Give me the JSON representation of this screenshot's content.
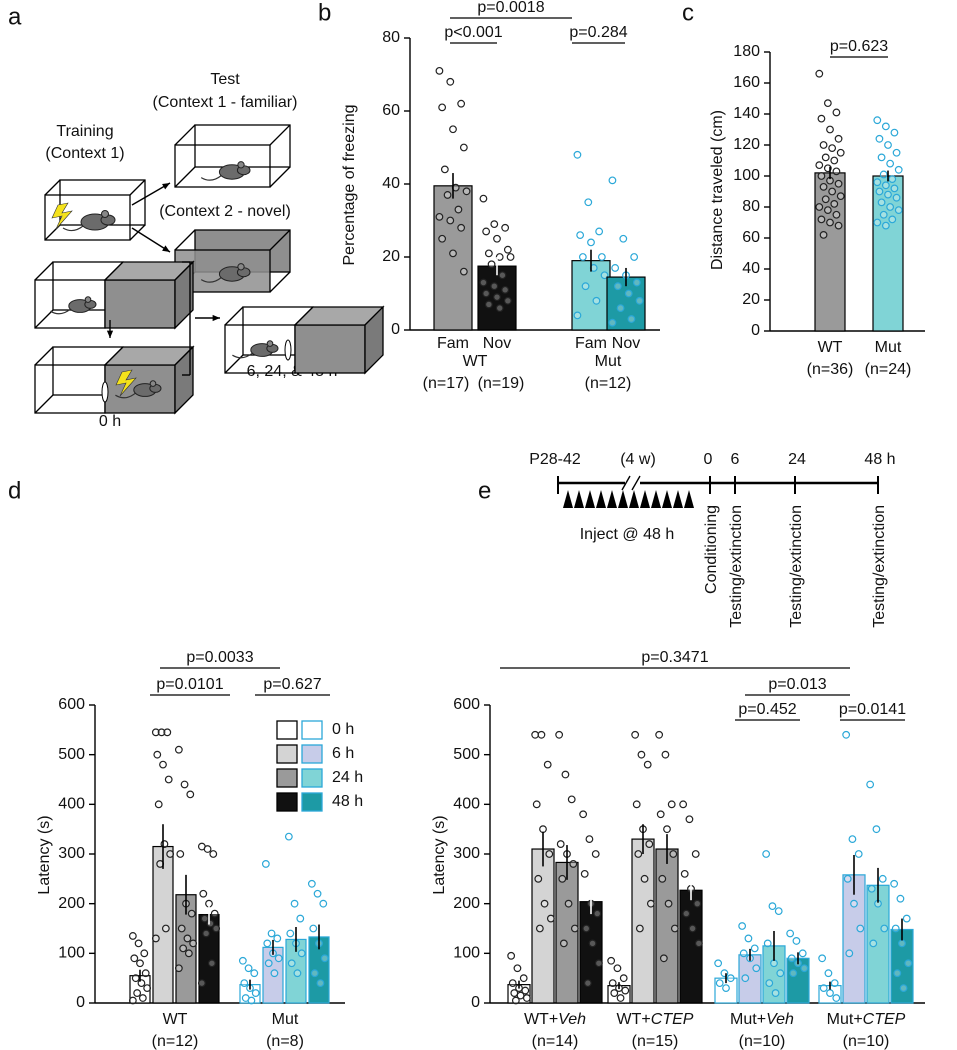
{
  "panel_labels": [
    "a",
    "b",
    "c",
    "d",
    "e"
  ],
  "diagram_a": {
    "training": [
      "Training",
      "(Context 1)"
    ],
    "test": [
      "Test",
      "(Context 1 - familiar)"
    ],
    "novel": "(Context 2 - novel)"
  },
  "diagram_d": {
    "times": [
      "0 h",
      "6, 24, & 48 h"
    ]
  },
  "timeline": {
    "labels": [
      "P28-42",
      "(4 w)",
      "0",
      "6",
      "24",
      "48 h"
    ],
    "inject": "Inject @ 48 h",
    "phases": [
      "Conditioning",
      "Testing/extinction",
      "Testing/extinction",
      "Testing/extinction"
    ]
  },
  "chart_data": [
    {
      "type": "bar",
      "ylabel": "Percentage of freezing",
      "categories": [
        "Fam",
        "Nov",
        "Fam",
        "Nov"
      ],
      "groups": [
        "WT",
        "Mut"
      ],
      "n_labels": [
        "(n=17)",
        "(n=19)",
        "(n=12)"
      ],
      "values": [
        39.5,
        17.5,
        19,
        14.5
      ],
      "errors": [
        3.5,
        2.5,
        3,
        2.5
      ],
      "colors": [
        "#9a9a9a",
        "#111111",
        "#80d4d6",
        "#1d9aa5"
      ],
      "edgecolors": [
        "#000000",
        "#000000",
        "#000000",
        "#000000"
      ],
      "point_colors": [
        "#222222",
        "#222222",
        "#2ba8d8",
        "#2ba8d8"
      ],
      "points": [
        [
          71,
          68,
          62,
          61,
          55,
          50,
          44,
          39,
          38,
          37,
          33,
          31,
          30,
          28,
          25,
          21,
          16
        ],
        [
          36,
          29,
          28,
          27,
          25,
          22,
          21,
          20,
          20,
          18,
          15,
          13,
          12,
          11,
          10,
          9,
          8,
          7,
          6
        ],
        [
          48,
          35,
          27,
          26,
          24,
          20,
          20,
          17,
          15,
          12,
          8,
          4
        ],
        [
          41,
          25,
          20,
          17,
          15,
          13,
          12,
          10,
          8,
          6,
          3,
          2
        ]
      ],
      "ylim": [
        0,
        80
      ],
      "yticks": [
        0,
        20,
        40,
        60,
        80
      ],
      "annotations": [
        "p=0.0018",
        "p<0.001",
        "p=0.284"
      ]
    },
    {
      "type": "bar",
      "ylabel": "Distance traveled (cm)",
      "categories": [
        "WT",
        "Mut"
      ],
      "n_labels": [
        "(n=36)",
        "(n=24)"
      ],
      "values": [
        102,
        100
      ],
      "errors": [
        4,
        3.5
      ],
      "colors": [
        "#9a9a9a",
        "#80d4d6"
      ],
      "edgecolors": [
        "#000000",
        "#000000"
      ],
      "point_colors": [
        "#222222",
        "#2ba8d8"
      ],
      "points": [
        [
          166,
          147,
          141,
          137,
          130,
          124,
          120,
          118,
          115,
          112,
          110,
          107,
          105,
          103,
          100,
          97,
          95,
          93,
          90,
          87,
          85,
          82,
          80,
          78,
          75,
          72,
          70,
          68,
          62
        ],
        [
          136,
          132,
          128,
          124,
          120,
          115,
          112,
          108,
          104,
          101,
          98,
          96,
          94,
          92,
          90,
          88,
          86,
          83,
          80,
          78,
          75,
          72,
          70,
          68
        ]
      ],
      "ylim": [
        0,
        180
      ],
      "yticks": [
        0,
        20,
        40,
        60,
        80,
        100,
        120,
        140,
        160,
        180
      ],
      "annotations": [
        "p=0.623"
      ]
    },
    {
      "type": "grouped_bar",
      "ylabel": "Latency (s)",
      "categories": [
        "WT",
        "Mut"
      ],
      "n_labels": [
        "(n=12)",
        "(n=8)"
      ],
      "legend": true,
      "edgecolors": [
        "#000000",
        "#2ba8d8"
      ],
      "point_colors": [
        "#222222",
        "#2ba8d8"
      ],
      "series": [
        {
          "name": "0 h",
          "colors": [
            "#ffffff",
            "#ffffff"
          ],
          "values": [
            55,
            37
          ],
          "errors": [
            12,
            10
          ],
          "points": [
            [
              135,
              120,
              100,
              90,
              80,
              60,
              50,
              40,
              30,
              20,
              10,
              5
            ],
            [
              85,
              70,
              60,
              40,
              30,
              20,
              10,
              5
            ]
          ]
        },
        {
          "name": "6 h",
          "colors": [
            "#d4d4d4",
            "#c7cce9"
          ],
          "values": [
            315,
            112
          ],
          "errors": [
            45,
            15
          ],
          "points": [
            [
              545,
              545,
              545,
              500,
              480,
              450,
              400,
              320,
              300,
              280,
              150,
              130
            ],
            [
              280,
              140,
              130,
              120,
              100,
              90,
              80,
              60
            ]
          ]
        },
        {
          "name": "24 h",
          "colors": [
            "#9a9a9a",
            "#80d4d6"
          ],
          "values": [
            218,
            128
          ],
          "errors": [
            40,
            25
          ],
          "points": [
            [
              510,
              440,
              420,
              300,
              200,
              180,
              150,
              130,
              120,
              110,
              100,
              70
            ],
            [
              335,
              200,
              170,
              140,
              120,
              100,
              80,
              60
            ]
          ]
        },
        {
          "name": "48 h",
          "colors": [
            "#111111",
            "#1d9aa5"
          ],
          "values": [
            178,
            133
          ],
          "errors": [
            20,
            25
          ],
          "points": [
            [
              315,
              310,
              300,
              220,
              200,
              180,
              170,
              160,
              150,
              140,
              80,
              40
            ],
            [
              240,
              220,
              200,
              150,
              120,
              90,
              60,
              40
            ]
          ]
        }
      ],
      "ylim": [
        0,
        600
      ],
      "yticks": [
        0,
        100,
        200,
        300,
        400,
        500,
        600
      ],
      "annotations": [
        "p=0.0033",
        "p=0.0101",
        "p=0.627"
      ]
    },
    {
      "type": "grouped_bar",
      "ylabel": "Latency (s)",
      "categories": [
        "WT+Veh",
        "WT+CTEP",
        "Mut+Veh",
        "Mut+CTEP"
      ],
      "n_labels": [
        "(n=14)",
        "(n=15)",
        "(n=10)",
        "(n=10)"
      ],
      "legend": false,
      "edgecolors": [
        "#000000",
        "#000000",
        "#2ba8d8",
        "#2ba8d8"
      ],
      "point_colors": [
        "#222222",
        "#222222",
        "#2ba8d8",
        "#2ba8d8"
      ],
      "series": [
        {
          "colors": [
            "#ffffff",
            "#ffffff",
            "#ffffff",
            "#ffffff"
          ],
          "values": [
            37,
            35,
            50,
            35
          ],
          "errors": [
            8,
            7,
            10,
            8
          ],
          "points": [
            [
              95,
              70,
              50,
              40,
              30,
              25,
              20,
              15,
              10,
              5
            ],
            [
              85,
              70,
              50,
              40,
              30,
              25,
              20,
              10
            ],
            [
              80,
              60,
              50,
              40,
              30
            ],
            [
              90,
              60,
              40,
              30,
              20,
              10
            ]
          ]
        },
        {
          "colors": [
            "#d4d4d4",
            "#d4d4d4",
            "#c7cce9",
            "#c7cce9"
          ],
          "values": [
            310,
            330,
            97,
            258
          ],
          "errors": [
            35,
            30,
            12,
            40
          ],
          "points": [
            [
              540,
              540,
              480,
              400,
              350,
              300,
              250,
              200,
              170,
              150
            ],
            [
              540,
              500,
              480,
              400,
              350,
              320,
              300,
              250,
              200,
              150
            ],
            [
              155,
              130,
              110,
              100,
              90,
              70,
              50
            ],
            [
              540,
              330,
              300,
              250,
              200,
              150,
              100
            ]
          ]
        },
        {
          "colors": [
            "#9a9a9a",
            "#9a9a9a",
            "#80d4d6",
            "#80d4d6"
          ],
          "values": [
            283,
            310,
            115,
            237
          ],
          "errors": [
            35,
            30,
            30,
            35
          ],
          "points": [
            [
              540,
              460,
              410,
              320,
              300,
              280,
              250,
              200,
              150,
              120
            ],
            [
              540,
              500,
              400,
              380,
              350,
              300,
              250,
              200,
              150,
              90
            ],
            [
              300,
              195,
              185,
              120,
              80,
              60,
              40,
              20
            ],
            [
              440,
              350,
              250,
              230,
              200,
              150,
              120
            ]
          ]
        },
        {
          "colors": [
            "#111111",
            "#111111",
            "#1d9aa5",
            "#1d9aa5"
          ],
          "values": [
            204,
            227,
            90,
            148
          ],
          "errors": [
            25,
            20,
            12,
            22
          ],
          "points": [
            [
              380,
              330,
              300,
              260,
              200,
              180,
              150,
              120,
              80,
              40
            ],
            [
              400,
              370,
              300,
              260,
              230,
              200,
              180,
              150,
              120
            ],
            [
              140,
              125,
              100,
              90,
              80,
              70,
              60
            ],
            [
              240,
              210,
              170,
              150,
              120,
              80,
              60,
              30
            ]
          ]
        }
      ],
      "ylim": [
        0,
        600
      ],
      "yticks": [
        0,
        100,
        200,
        300,
        400,
        500,
        600
      ],
      "annotations": [
        "p=0.3471",
        "p=0.013",
        "p=0.452",
        "p=0.0141"
      ]
    }
  ]
}
